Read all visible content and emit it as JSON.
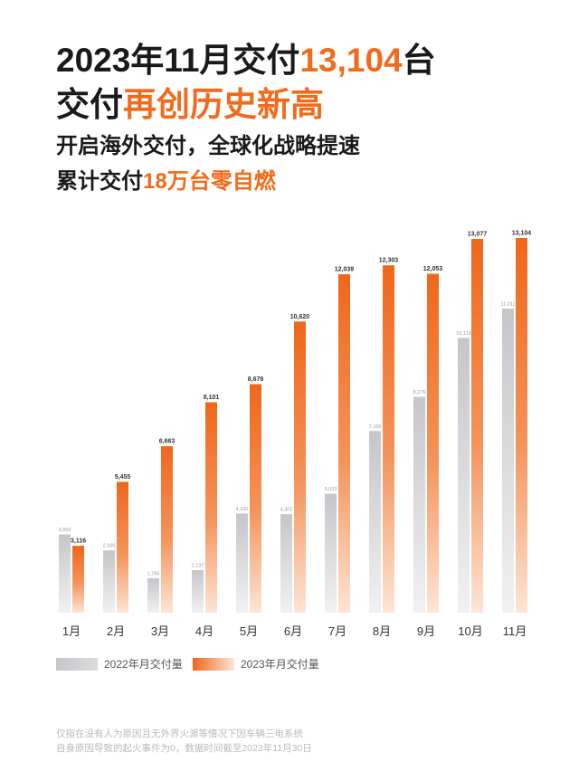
{
  "title": {
    "line1": {
      "prefix": "2023年11月交付",
      "highlight": "13,104",
      "suffix": "台"
    },
    "line2": {
      "prefix": "交付",
      "highlight": "再创历史新高"
    },
    "line3": "开启海外交付，全球化战略提速",
    "line4": {
      "prefix": "累计交付",
      "highlight": "18万台零自燃"
    }
  },
  "colors": {
    "accent": "#f26a1b",
    "text": "#1a1a1a",
    "bar_2022_top": "#c6c6ca",
    "bar_2022_bottom": "#f1f1f3",
    "bar_2023_top": "#f0661a",
    "bar_2023_mid": "#f5935a",
    "bar_2023_bottom": "#fde5d5"
  },
  "chart_data": {
    "type": "bar",
    "categories": [
      "1月",
      "2月",
      "3月",
      "4月",
      "5月",
      "6月",
      "7月",
      "8月",
      "9月",
      "10月",
      "11月"
    ],
    "series": [
      {
        "name": "2022年月交付量",
        "values": [
          3550,
          2936,
          1795,
          2137,
          4330,
          4302,
          5033,
          7166,
          8276,
          10119,
          11011
        ],
        "labels": [
          "3,550",
          "2,936",
          "1,795",
          "2,137",
          "4,330",
          "4,302",
          "5,033",
          "7,166",
          "8,276",
          "10,119",
          "11,011"
        ]
      },
      {
        "name": "2023年月交付量",
        "values": [
          3116,
          5455,
          6663,
          8101,
          8678,
          10620,
          12039,
          12303,
          12053,
          13077,
          13104
        ],
        "labels": [
          "3,116",
          "5,455",
          "6,663",
          "8,101",
          "8,678",
          "10,620",
          "12,039",
          "12,303",
          "12,053",
          "13,077",
          "13,104"
        ]
      }
    ],
    "grid": false,
    "legend": "bottom-left"
  },
  "footnote": {
    "line1": "仅指在没有人为原因且无外界火源等情况下因车辆三电系统",
    "line2": "自身原因导致的起火事件为0，数据时间截至2023年11月30日"
  }
}
